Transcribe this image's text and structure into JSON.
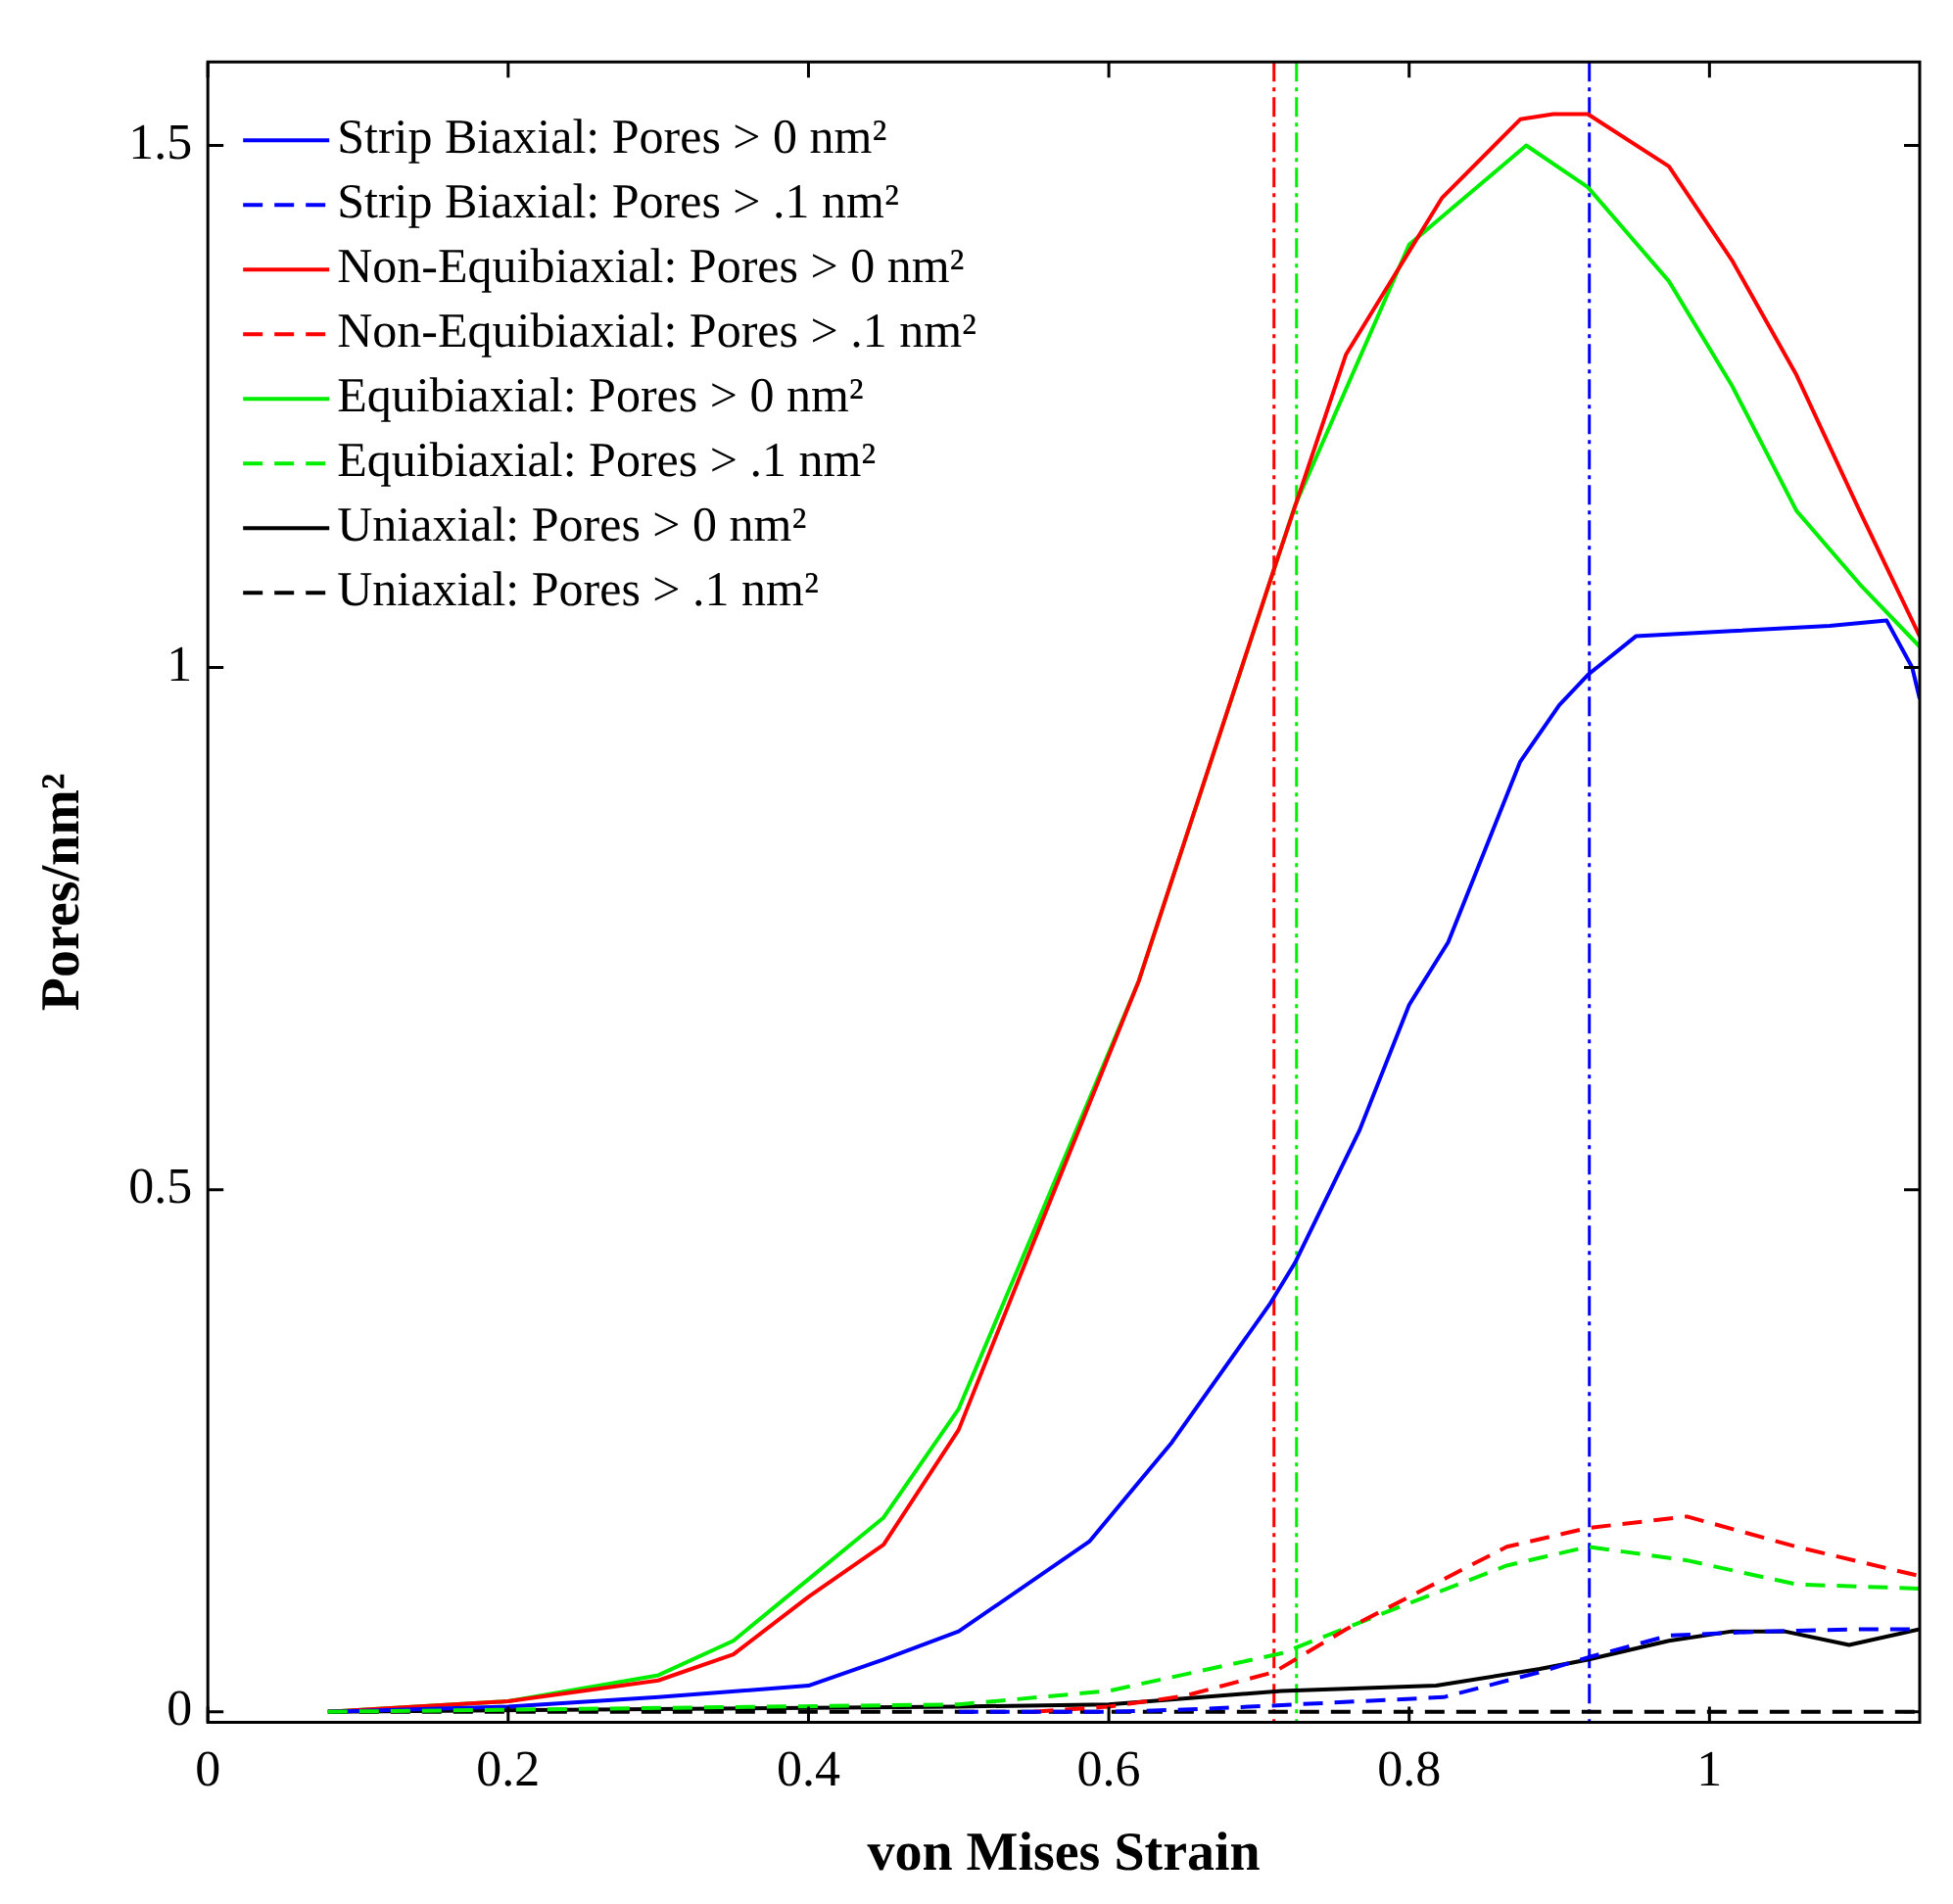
{
  "chart_data": {
    "type": "line",
    "xlabel": "von Mises Strain",
    "ylabel": "Pores/nm²",
    "xlim": [
      0,
      1.14
    ],
    "ylim": [
      -0.01,
      1.58
    ],
    "xticks": [
      0,
      0.2,
      0.4,
      0.6,
      0.8,
      1
    ],
    "yticks": [
      0,
      0.5,
      1,
      1.5
    ],
    "grid": false,
    "legend": "top left",
    "marker": "none",
    "series": [
      {
        "name": "Strip Biaxial: Pores > 0 nm²",
        "color": "#0000ff",
        "line_style": "solid",
        "x": [
          0.08,
          0.2,
          0.3,
          0.4,
          0.45,
          0.5,
          0.587,
          0.642,
          0.707,
          0.724,
          0.767,
          0.8,
          0.826,
          0.874,
          0.9,
          0.919,
          0.951,
          1.015,
          1.08,
          1.118,
          1.135,
          1.14
        ],
        "values": [
          0,
          0.005,
          0.014,
          0.025,
          0.05,
          0.077,
          0.163,
          0.258,
          0.39,
          0.43,
          0.557,
          0.677,
          0.737,
          0.91,
          0.964,
          0.993,
          1.03,
          1.035,
          1.04,
          1.045,
          1.0,
          0.97
        ]
      },
      {
        "name": "Strip Biaxial: Pores > .1 nm²",
        "color": "#0000ff",
        "line_style": "dashed",
        "x": [
          0.5,
          0.6,
          0.65,
          0.724,
          0.823,
          0.887,
          0.919,
          0.973,
          1.037,
          1.1,
          1.14
        ],
        "values": [
          0,
          0,
          0.002,
          0.007,
          0.014,
          0.038,
          0.052,
          0.073,
          0.077,
          0.079,
          0.079
        ]
      },
      {
        "name": "Non-Equibiaxial: Pores > 0 nm²",
        "color": "#ff0000",
        "line_style": "solid",
        "x": [
          0.08,
          0.2,
          0.3,
          0.35,
          0.4,
          0.45,
          0.5,
          0.55,
          0.62,
          0.709,
          0.758,
          0.822,
          0.874,
          0.896,
          0.919,
          0.973,
          1.015,
          1.058,
          1.1,
          1.14
        ],
        "values": [
          0,
          0.01,
          0.03,
          0.055,
          0.11,
          0.16,
          0.27,
          0.45,
          0.7,
          1.09,
          1.3,
          1.45,
          1.525,
          1.53,
          1.53,
          1.48,
          1.39,
          1.28,
          1.15,
          1.03
        ]
      },
      {
        "name": "Non-Equibiaxial: Pores > .1 nm²",
        "color": "#ff0000",
        "line_style": "dashed",
        "x": [
          0.55,
          0.6,
          0.65,
          0.71,
          0.758,
          0.8,
          0.865,
          0.919,
          0.985,
          1.058,
          1.14
        ],
        "values": [
          0,
          0.005,
          0.015,
          0.038,
          0.079,
          0.11,
          0.158,
          0.176,
          0.187,
          0.158,
          0.13
        ]
      },
      {
        "name": "Equibiaxial: Pores > 0 nm²",
        "color": "#00ee00",
        "line_style": "solid",
        "x": [
          0.08,
          0.2,
          0.3,
          0.35,
          0.4,
          0.45,
          0.5,
          0.55,
          0.62,
          0.724,
          0.8,
          0.878,
          0.919,
          0.973,
          1.015,
          1.058,
          1.1,
          1.14
        ],
        "values": [
          0,
          0.01,
          0.035,
          0.068,
          0.127,
          0.186,
          0.29,
          0.46,
          0.7,
          1.155,
          1.405,
          1.5,
          1.46,
          1.37,
          1.27,
          1.15,
          1.08,
          1.02
        ]
      },
      {
        "name": "Equibiaxial: Pores > .1 nm²",
        "color": "#00ee00",
        "line_style": "dashed",
        "x": [
          0.08,
          0.5,
          0.6,
          0.715,
          0.8,
          0.865,
          0.919,
          0.985,
          1.058,
          1.14
        ],
        "values": [
          0,
          0.007,
          0.02,
          0.056,
          0.104,
          0.14,
          0.158,
          0.145,
          0.122,
          0.118
        ]
      },
      {
        "name": "Uniaxial: Pores > 0 nm²",
        "color": "#000000",
        "line_style": "solid",
        "x": [
          0.08,
          0.5,
          0.6,
          0.715,
          0.818,
          0.887,
          0.919,
          0.973,
          1.015,
          1.05,
          1.093,
          1.14
        ],
        "values": [
          0,
          0.005,
          0.007,
          0.02,
          0.025,
          0.041,
          0.05,
          0.068,
          0.077,
          0.077,
          0.064,
          0.079
        ]
      },
      {
        "name": "Uniaxial: Pores > .1 nm²",
        "color": "#000000",
        "line_style": "dashed",
        "x": [
          0.08,
          1.14
        ],
        "values": [
          0,
          0
        ]
      }
    ],
    "ref_lines": [
      {
        "axis": "x",
        "value": 0.71,
        "color": "#ff0000",
        "line_style": "dashed"
      },
      {
        "axis": "x",
        "value": 0.725,
        "color": "#00ee00",
        "line_style": "dashed"
      },
      {
        "axis": "x",
        "value": 0.92,
        "color": "#0000ff",
        "line_style": "dashed"
      }
    ]
  }
}
